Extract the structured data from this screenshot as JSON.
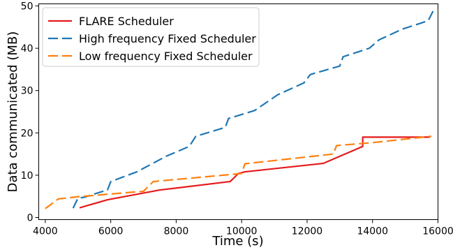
{
  "chart_data": {
    "type": "line",
    "xlabel": "Time (s)",
    "ylabel": "Data communicated (MB)",
    "xlim": [
      3800,
      16000
    ],
    "ylim": [
      -0.5,
      50.5
    ],
    "xticks": [
      4000,
      6000,
      8000,
      10000,
      12000,
      14000,
      16000
    ],
    "xtick_labels": [
      "4000",
      "6000",
      "8000",
      "10000",
      "12000",
      "14000",
      "16000"
    ],
    "yticks": [
      0,
      10,
      20,
      30,
      40,
      50
    ],
    "ytick_labels": [
      "0",
      "10",
      "20",
      "30",
      "40",
      "50"
    ],
    "grid": false,
    "legend_position": "top-left",
    "series": [
      {
        "name": "FLARE Scheduler",
        "color": "#e41a1c",
        "dash": "solid",
        "points": [
          [
            5050,
            2.3
          ],
          [
            5900,
            4.2
          ],
          [
            7500,
            6.5
          ],
          [
            9650,
            8.5
          ],
          [
            9900,
            10.4
          ],
          [
            10100,
            10.8
          ],
          [
            12500,
            12.8
          ],
          [
            13100,
            14.8
          ],
          [
            13700,
            16.8
          ],
          [
            13700,
            19.0
          ],
          [
            15750,
            19.0
          ]
        ]
      },
      {
        "name": "High frequency Fixed Scheduler",
        "color": "#1f77b4",
        "dash": "dashed",
        "points": [
          [
            4850,
            2.2
          ],
          [
            5000,
            4.6
          ],
          [
            5200,
            4.8
          ],
          [
            5600,
            5.8
          ],
          [
            5900,
            6.5
          ],
          [
            6000,
            8.5
          ],
          [
            6800,
            10.8
          ],
          [
            7700,
            14.5
          ],
          [
            8400,
            16.8
          ],
          [
            8600,
            19.2
          ],
          [
            9500,
            21.3
          ],
          [
            9600,
            23.4
          ],
          [
            10400,
            25.3
          ],
          [
            11100,
            29.0
          ],
          [
            11900,
            31.8
          ],
          [
            12100,
            33.8
          ],
          [
            13000,
            35.8
          ],
          [
            13100,
            38.0
          ],
          [
            13900,
            40.0
          ],
          [
            14200,
            42.0
          ],
          [
            14900,
            44.5
          ],
          [
            15700,
            46.5
          ],
          [
            15850,
            48.8
          ]
        ]
      },
      {
        "name": "Low frequency Fixed Scheduler",
        "color": "#ff7f0e",
        "dash": "dashed",
        "points": [
          [
            4000,
            2.1
          ],
          [
            4400,
            4.4
          ],
          [
            5000,
            4.9
          ],
          [
            5900,
            5.5
          ],
          [
            7000,
            6.2
          ],
          [
            7300,
            8.5
          ],
          [
            10000,
            10.4
          ],
          [
            10100,
            12.7
          ],
          [
            12800,
            15.0
          ],
          [
            12900,
            17.0
          ],
          [
            14000,
            17.7
          ],
          [
            15800,
            19.2
          ]
        ]
      }
    ]
  }
}
